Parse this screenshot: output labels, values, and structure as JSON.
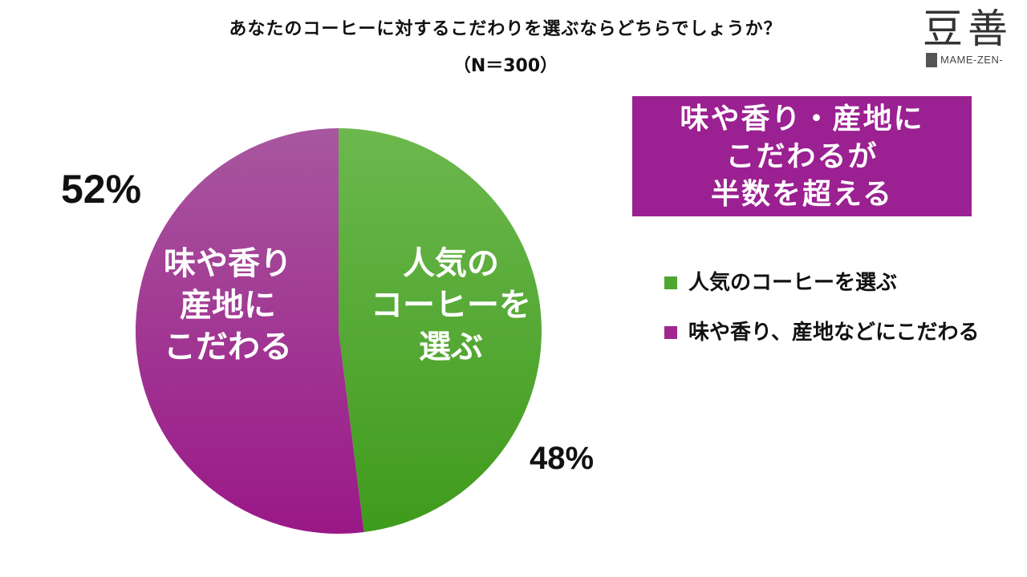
{
  "title": "あなたのコーヒーに対するこだわりを選ぶならどちらでしょうか？",
  "subtitle": "（N＝300）",
  "logo": {
    "kanji": "豆善",
    "roman": "MAME-ZEN-"
  },
  "callout": "味や香り・産地に\nこだわるが\n半数を超える",
  "chart_data": {
    "type": "pie",
    "start_angle_deg": 0,
    "direction": "clockwise",
    "slices": [
      {
        "legend": "人気のコーヒーを選ぶ",
        "inner_label": [
          "人気の",
          "コーヒーを",
          "選ぶ"
        ],
        "value": 48,
        "value_label": "48%",
        "color": "#4ea72e"
      },
      {
        "legend": "味や香り、産地などにこだわる",
        "inner_label": [
          "味や香り",
          "産地に",
          "こだわる"
        ],
        "value": 52,
        "value_label": "52%",
        "color": "#a2268f"
      }
    ]
  }
}
